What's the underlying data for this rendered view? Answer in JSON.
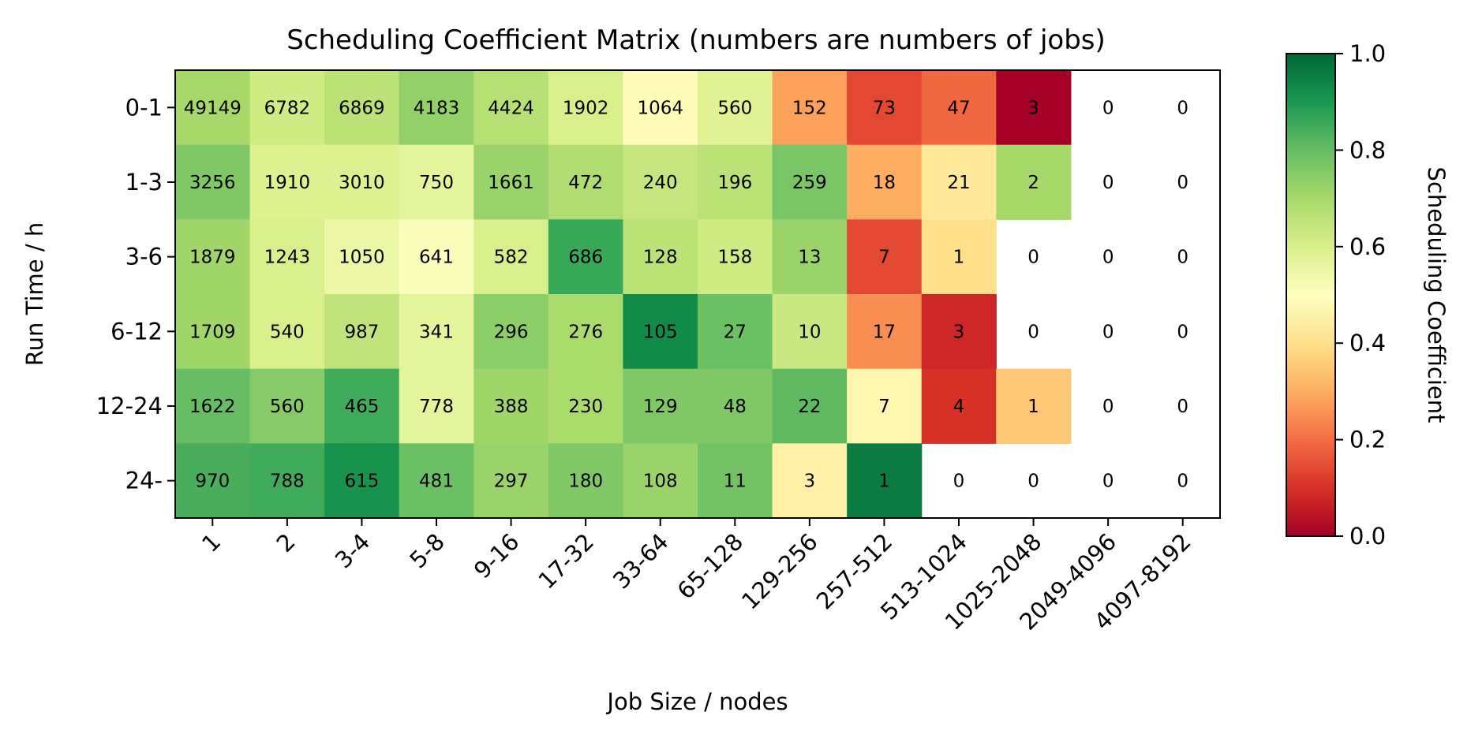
{
  "chart_data": {
    "type": "heatmap",
    "title": "Scheduling Coefficient Matrix (numbers are numbers of jobs)",
    "xlabel": "Job Size / nodes",
    "ylabel": "Run Time / h",
    "x_categories": [
      "1",
      "2",
      "3-4",
      "5-8",
      "9-16",
      "17-32",
      "33-64",
      "65-128",
      "129-256",
      "257-512",
      "513-1024",
      "1025-2048",
      "2049-4096",
      "4097-8192"
    ],
    "y_categories": [
      "0-1",
      "1-3",
      "3-6",
      "6-12",
      "12-24",
      "24-"
    ],
    "counts": [
      [
        49149,
        6782,
        6869,
        4183,
        4424,
        1902,
        1064,
        560,
        152,
        73,
        47,
        3,
        0,
        0
      ],
      [
        3256,
        1910,
        3010,
        750,
        1661,
        472,
        240,
        196,
        259,
        18,
        21,
        2,
        0,
        0
      ],
      [
        1879,
        1243,
        1050,
        641,
        582,
        686,
        128,
        158,
        13,
        7,
        1,
        0,
        0,
        0
      ],
      [
        1709,
        540,
        987,
        341,
        296,
        276,
        105,
        27,
        10,
        17,
        3,
        0,
        0,
        0
      ],
      [
        1622,
        560,
        465,
        778,
        388,
        230,
        129,
        48,
        22,
        7,
        4,
        1,
        0,
        0
      ],
      [
        970,
        788,
        615,
        481,
        297,
        180,
        108,
        11,
        3,
        1,
        0,
        0,
        0,
        0
      ]
    ],
    "coefficients": [
      [
        0.7,
        0.62,
        0.66,
        0.73,
        0.67,
        0.6,
        0.49,
        0.58,
        0.28,
        0.14,
        0.19,
        0.0,
        null,
        null
      ],
      [
        0.76,
        0.59,
        0.59,
        0.57,
        0.72,
        0.68,
        0.64,
        0.66,
        0.77,
        0.3,
        0.43,
        0.7,
        null,
        null
      ],
      [
        0.71,
        0.6,
        0.55,
        0.51,
        0.6,
        0.86,
        0.66,
        0.62,
        0.72,
        0.14,
        0.4,
        null,
        null,
        null
      ],
      [
        0.71,
        0.6,
        0.65,
        0.57,
        0.74,
        0.69,
        0.93,
        0.79,
        0.63,
        0.25,
        0.08,
        null,
        null,
        null
      ],
      [
        0.8,
        0.75,
        0.85,
        0.57,
        0.71,
        0.69,
        0.76,
        0.76,
        0.81,
        0.47,
        0.1,
        0.35,
        null,
        null
      ],
      [
        0.84,
        0.85,
        0.91,
        0.79,
        0.72,
        0.76,
        0.72,
        0.78,
        0.45,
        0.96,
        null,
        null,
        null,
        null
      ]
    ],
    "colorbar": {
      "label": "Scheduling Coefficient",
      "range": [
        0.0,
        1.0
      ],
      "ticks": [
        "0.0",
        "0.2",
        "0.4",
        "0.6",
        "0.8",
        "1.0"
      ],
      "colormap": "RdYlGn"
    }
  }
}
